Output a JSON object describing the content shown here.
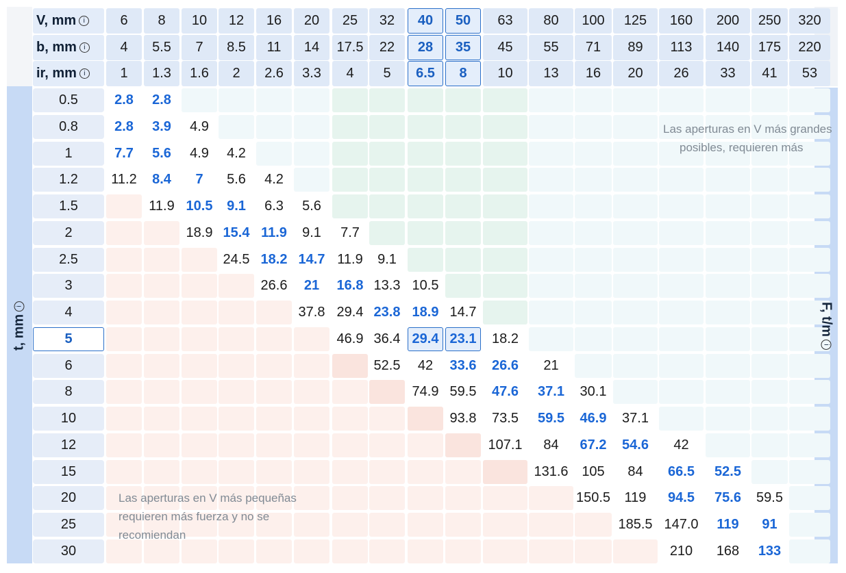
{
  "headers": {
    "V_label": "V, mm",
    "b_label": "b, mm",
    "ir_label": "ir, mm",
    "V": [
      "6",
      "8",
      "10",
      "12",
      "16",
      "20",
      "25",
      "32",
      "40",
      "50",
      "63",
      "80",
      "100",
      "125",
      "160",
      "200",
      "250",
      "320"
    ],
    "b": [
      "4",
      "5.5",
      "7",
      "8.5",
      "11",
      "14",
      "17.5",
      "22",
      "28",
      "35",
      "45",
      "55",
      "71",
      "89",
      "113",
      "140",
      "175",
      "220"
    ],
    "ir": [
      "1",
      "1.3",
      "1.6",
      "2",
      "2.6",
      "3.3",
      "4",
      "5",
      "6.5",
      "8",
      "10",
      "13",
      "16",
      "20",
      "26",
      "33",
      "41",
      "53"
    ]
  },
  "axis": {
    "thickness_title": "t, mm",
    "force_title": "F, t/m",
    "info_symbol": "i"
  },
  "thickness": [
    "0.5",
    "0.8",
    "1",
    "1.2",
    "1.5",
    "2",
    "2.5",
    "3",
    "4",
    "5",
    "6",
    "8",
    "10",
    "12",
    "15",
    "20",
    "25",
    "30"
  ],
  "selected_thickness": "5",
  "selected_columns": [
    "40",
    "50"
  ],
  "rows": [
    [
      "2.8",
      "2.8",
      "",
      "",
      "",
      "",
      "",
      "",
      "",
      "",
      "",
      "",
      "",
      "",
      "",
      "",
      "",
      ""
    ],
    [
      "2.8",
      "3.9",
      "4.9",
      "",
      "",
      "",
      "",
      "",
      "",
      "",
      "",
      "",
      "",
      "",
      "",
      "",
      "",
      ""
    ],
    [
      "7.7",
      "5.6",
      "4.9",
      "4.2",
      "",
      "",
      "",
      "",
      "",
      "",
      "",
      "",
      "",
      "",
      "",
      "",
      "",
      ""
    ],
    [
      "11.2",
      "8.4",
      "7",
      "5.6",
      "4.2",
      "",
      "",
      "",
      "",
      "",
      "",
      "",
      "",
      "",
      "",
      "",
      "",
      ""
    ],
    [
      "",
      "11.9",
      "10.5",
      "9.1",
      "6.3",
      "5.6",
      "",
      "",
      "",
      "",
      "",
      "",
      "",
      "",
      "",
      "",
      "",
      ""
    ],
    [
      "",
      "",
      "18.9",
      "15.4",
      "11.9",
      "9.1",
      "7.7",
      "",
      "",
      "",
      "",
      "",
      "",
      "",
      "",
      "",
      "",
      ""
    ],
    [
      "",
      "",
      "",
      "24.5",
      "18.2",
      "14.7",
      "11.9",
      "9.1",
      "",
      "",
      "",
      "",
      "",
      "",
      "",
      "",
      "",
      ""
    ],
    [
      "",
      "",
      "",
      "",
      "26.6",
      "21",
      "16.8",
      "13.3",
      "10.5",
      "",
      "",
      "",
      "",
      "",
      "",
      "",
      "",
      ""
    ],
    [
      "",
      "",
      "",
      "",
      "",
      "37.8",
      "29.4",
      "23.8",
      "18.9",
      "14.7",
      "",
      "",
      "",
      "",
      "",
      "",
      "",
      ""
    ],
    [
      "",
      "",
      "",
      "",
      "",
      "",
      "46.9",
      "36.4",
      "29.4",
      "23.1",
      "18.2",
      "",
      "",
      "",
      "",
      "",
      "",
      ""
    ],
    [
      "",
      "",
      "",
      "",
      "",
      "",
      "",
      "52.5",
      "42",
      "33.6",
      "26.6",
      "21",
      "",
      "",
      "",
      "",
      "",
      ""
    ],
    [
      "",
      "",
      "",
      "",
      "",
      "",
      "",
      "",
      "74.9",
      "59.5",
      "47.6",
      "37.1",
      "30.1",
      "",
      "",
      "",
      "",
      ""
    ],
    [
      "",
      "",
      "",
      "",
      "",
      "",
      "",
      "",
      "",
      "93.8",
      "73.5",
      "59.5",
      "46.9",
      "37.1",
      "",
      "",
      "",
      ""
    ],
    [
      "",
      "",
      "",
      "",
      "",
      "",
      "",
      "",
      "",
      "",
      "107.1",
      "84",
      "67.2",
      "54.6",
      "42",
      "",
      "",
      ""
    ],
    [
      "",
      "",
      "",
      "",
      "",
      "",
      "",
      "",
      "",
      "",
      "",
      "131.6",
      "105",
      "84",
      "66.5",
      "52.5",
      "",
      ""
    ],
    [
      "",
      "",
      "",
      "",
      "",
      "",
      "",
      "",
      "",
      "",
      "",
      "",
      "150.5",
      "119",
      "94.5",
      "75.6",
      "59.5",
      ""
    ],
    [
      "",
      "",
      "",
      "",
      "",
      "",
      "",
      "",
      "",
      "",
      "",
      "",
      "",
      "185.5",
      "147.0",
      "119",
      "91",
      ""
    ],
    [
      "",
      "",
      "",
      "",
      "",
      "",
      "",
      "",
      "",
      "",
      "",
      "",
      "",
      "",
      "210",
      "168",
      "133",
      ""
    ]
  ],
  "highlighted": [
    [
      "2.8",
      "2.8"
    ],
    [
      "2.8",
      "3.9"
    ],
    [
      "7.7",
      "5.6"
    ],
    [
      "8.4",
      "7"
    ],
    [
      "10.5",
      "9.1"
    ],
    [
      "15.4",
      "11.9"
    ],
    [
      "18.2",
      "14.7"
    ],
    [
      "21",
      "16.8"
    ],
    [
      "23.8",
      "18.9"
    ],
    [
      "29.4",
      "23.1"
    ],
    [
      "33.6",
      "26.6"
    ],
    [
      "47.6",
      "37.1"
    ],
    [
      "59.5",
      "46.9"
    ],
    [
      "67.2",
      "54.6"
    ],
    [
      "66.5",
      "52.5"
    ],
    [
      "94.5",
      "75.6"
    ],
    [
      "119",
      "91"
    ],
    [
      "133"
    ]
  ],
  "notes": {
    "small_v": "Las aperturas en V más pequeñas requieren más fuerza y no se recomiendan",
    "small_v_lines": [
      "Las aperturas en V más pequeñas",
      "requieren más fuerza y no se",
      "recomiendan"
    ],
    "large_v_lines": [
      "Las aperturas en V más grandes",
      "posibles, requieren más"
    ]
  },
  "colors": {
    "accent": "#2a6fc9",
    "highlight_text": "#1a66d6",
    "header_bg": "#dfe9f7",
    "green_zone": "#e6f4ee",
    "pink_zone": "#fdf0ec"
  }
}
